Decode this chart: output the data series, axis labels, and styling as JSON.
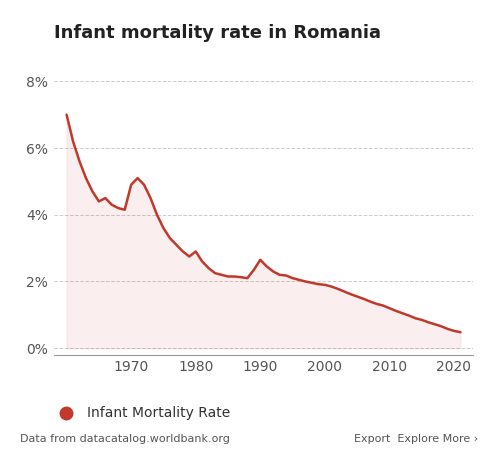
{
  "title": "Infant mortality rate in Romania",
  "line_color": "#c0392b",
  "background_color": "#ffffff",
  "years": [
    1960,
    1961,
    1962,
    1963,
    1964,
    1965,
    1966,
    1967,
    1968,
    1969,
    1970,
    1971,
    1972,
    1973,
    1974,
    1975,
    1976,
    1977,
    1978,
    1979,
    1980,
    1981,
    1982,
    1983,
    1984,
    1985,
    1986,
    1987,
    1988,
    1989,
    1990,
    1991,
    1992,
    1993,
    1994,
    1995,
    1996,
    1997,
    1998,
    1999,
    2000,
    2001,
    2002,
    2003,
    2004,
    2005,
    2006,
    2007,
    2008,
    2009,
    2010,
    2011,
    2012,
    2013,
    2014,
    2015,
    2016,
    2017,
    2018,
    2019,
    2020,
    2021
  ],
  "values": [
    0.07,
    0.062,
    0.056,
    0.051,
    0.047,
    0.044,
    0.045,
    0.043,
    0.042,
    0.0415,
    0.049,
    0.051,
    0.049,
    0.045,
    0.04,
    0.036,
    0.033,
    0.031,
    0.029,
    0.0275,
    0.029,
    0.026,
    0.024,
    0.0225,
    0.022,
    0.0215,
    0.0215,
    0.0213,
    0.021,
    0.0235,
    0.0265,
    0.0245,
    0.023,
    0.022,
    0.0218,
    0.021,
    0.0205,
    0.02,
    0.0196,
    0.0192,
    0.019,
    0.0185,
    0.0178,
    0.017,
    0.0162,
    0.0155,
    0.0148,
    0.014,
    0.0133,
    0.0128,
    0.012,
    0.0112,
    0.0105,
    0.0098,
    0.009,
    0.0085,
    0.0078,
    0.0072,
    0.0066,
    0.0058,
    0.0052,
    0.0048
  ],
  "yticks": [
    0.0,
    0.02,
    0.04,
    0.06,
    0.08
  ],
  "ytick_labels": [
    "0%",
    "2%",
    "4%",
    "6%",
    "8%"
  ],
  "xtick_years": [
    1970,
    1980,
    1990,
    2000,
    2010,
    2020
  ],
  "ylim": [
    -0.002,
    0.088
  ],
  "xlim": [
    1958,
    2023
  ],
  "legend_label": "Infant Mortality Rate",
  "footer_left": "Data from datacatalog.worldbank.org",
  "footer_right": "Export  Explore More ›",
  "grid_color": "#cccccc",
  "title_fontsize": 13,
  "tick_fontsize": 10,
  "legend_fontsize": 10
}
